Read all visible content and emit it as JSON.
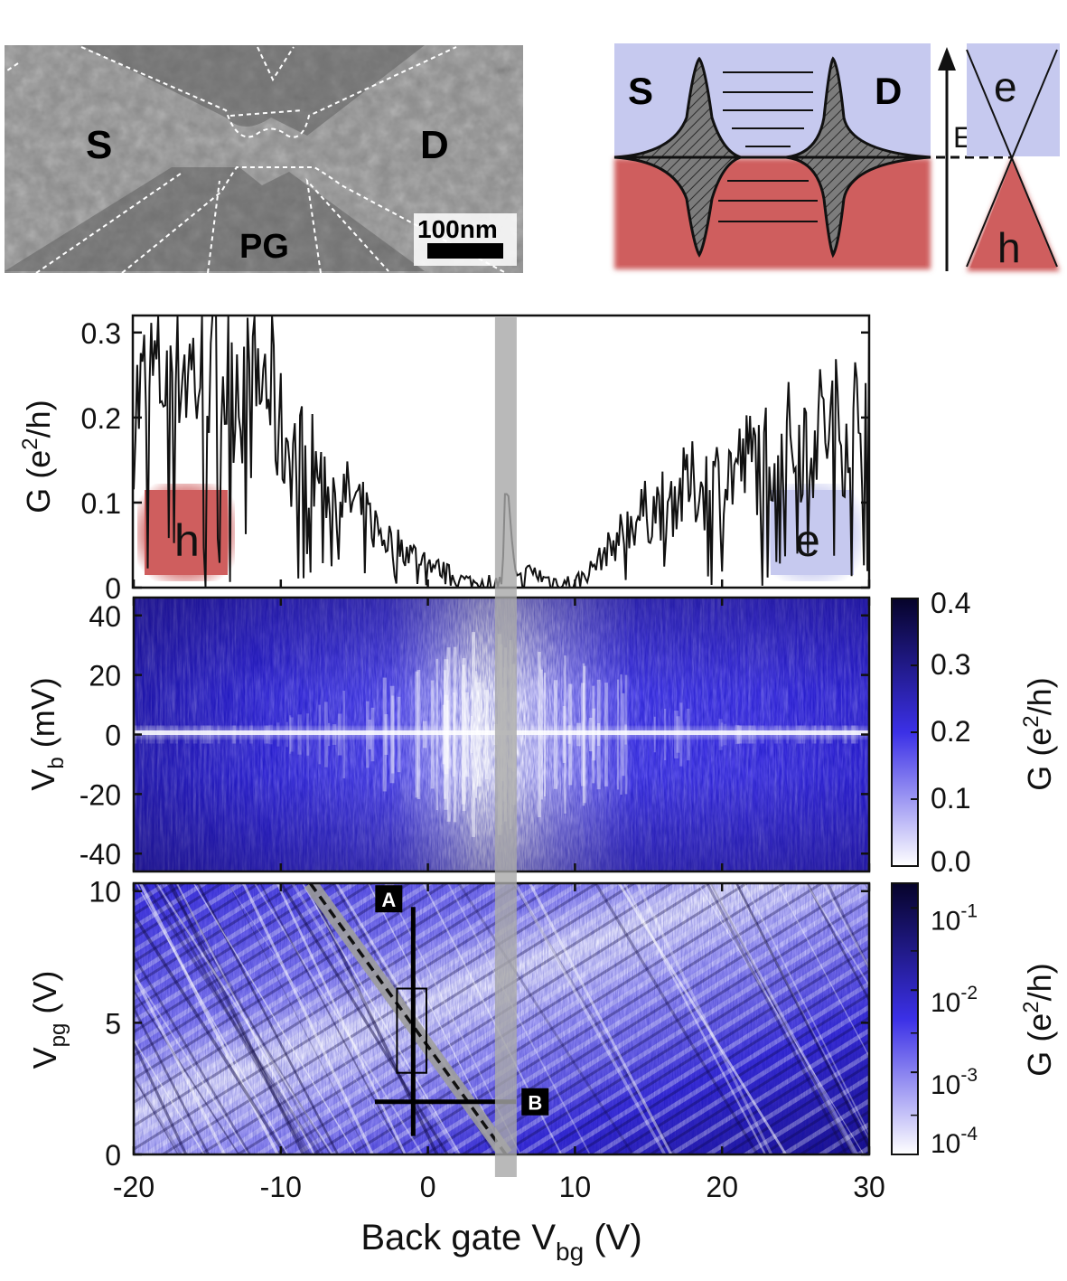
{
  "sem_panel": {
    "source_label": "S",
    "drain_label": "D",
    "gate_label": "PG",
    "scale_bar_label": "100nm"
  },
  "band_diagram": {
    "source_label": "S",
    "drain_label": "D",
    "energy_label": "E",
    "electron_label": "e",
    "hole_label": "h"
  },
  "colors": {
    "hole_red": "#cf5e5e",
    "electron_blue": "#c6c9ef",
    "map_dark": "#07042b",
    "map_mid": "#3a2ee8",
    "map_light": "#ffffff",
    "gray_band": "#a8a8a8"
  },
  "chart_data": [
    {
      "type": "line",
      "title": "",
      "xlabel": "",
      "ylabel": "G (e²/h)",
      "ylabel_main": "G (e",
      "ylabel_sup": "2",
      "ylabel_tail": "/h)",
      "xlim": [
        -20,
        30
      ],
      "ylim": [
        0,
        0.32
      ],
      "yticks": [
        "0.3",
        "0.2",
        "0.1",
        "0"
      ],
      "ytick_values": [
        0.3,
        0.2,
        0.1,
        0
      ],
      "hole_region_label": "h",
      "electron_region_label": "e",
      "highlight_vbg": 5.3,
      "x": [
        -20,
        -19,
        -18,
        -17,
        -16,
        -15,
        -14,
        -13,
        -12,
        -11,
        -10,
        -9,
        -8,
        -7,
        -6,
        -5,
        -4,
        -3,
        -2,
        -1,
        0,
        1,
        2,
        3,
        4,
        5,
        5.3,
        6,
        7,
        8,
        9,
        10,
        11,
        12,
        13,
        14,
        15,
        16,
        17,
        18,
        19,
        20,
        21,
        22,
        23,
        24,
        25,
        26,
        27,
        28,
        29,
        30
      ],
      "y": [
        0.21,
        0.24,
        0.26,
        0.28,
        0.25,
        0.27,
        0.25,
        0.26,
        0.22,
        0.25,
        0.18,
        0.16,
        0.15,
        0.12,
        0.11,
        0.1,
        0.08,
        0.06,
        0.05,
        0.04,
        0.03,
        0.02,
        0.01,
        0.005,
        0.005,
        0.005,
        0.11,
        0.005,
        0.02,
        0.01,
        0.005,
        0.005,
        0.02,
        0.04,
        0.06,
        0.08,
        0.09,
        0.1,
        0.11,
        0.12,
        0.12,
        0.13,
        0.14,
        0.15,
        0.16,
        0.17,
        0.17,
        0.18,
        0.19,
        0.19,
        0.2,
        0.21
      ]
    },
    {
      "type": "heatmap",
      "title": "",
      "xlabel": "",
      "ylabel": "V_b (mV)",
      "ylabel_main": "V",
      "ylabel_sub": "b",
      "ylabel_tail": " (mV)",
      "xlim": [
        -20,
        30
      ],
      "ylim": [
        -46,
        46
      ],
      "yticks": [
        "40",
        "20",
        "0",
        "-20",
        "-40"
      ],
      "ytick_values": [
        40,
        20,
        0,
        -20,
        -40
      ],
      "colorbar_label": "G (e²/h)",
      "colorbar_main": "G (e",
      "colorbar_sup": "2",
      "colorbar_tail": "/h)",
      "colorbar_ticks": [
        "0.4",
        "0.3",
        "0.2",
        "0.1",
        "0.0"
      ],
      "colorbar_values": [
        0.4,
        0.3,
        0.2,
        0.1,
        0.0
      ],
      "colorbar_scale": "linear",
      "gap_region_vbg": [
        0,
        10
      ],
      "bright_line_vb": 0
    },
    {
      "type": "heatmap",
      "title": "",
      "xlabel": "Back gate V_bg (V)",
      "xlabel_main": "Back gate V",
      "xlabel_sub": "bg",
      "xlabel_tail": " (V)",
      "ylabel": "V_pg (V)",
      "ylabel_main": "V",
      "ylabel_sub": "pg",
      "ylabel_tail": " (V)",
      "xlim": [
        -20,
        30
      ],
      "ylim": [
        0,
        10.3
      ],
      "xticks": [
        "-20",
        "-10",
        "0",
        "10",
        "20",
        "30"
      ],
      "xtick_values": [
        -20,
        -10,
        0,
        10,
        20,
        30
      ],
      "yticks": [
        "10",
        "5",
        "0"
      ],
      "ytick_values": [
        10,
        5,
        0
      ],
      "colorbar_label": "G (e²/h)",
      "colorbar_main": "G (e",
      "colorbar_sup": "2",
      "colorbar_tail": "/h)",
      "colorbar_tick_base": "10",
      "colorbar_tick_exponents": [
        "-1",
        "-2",
        "-3",
        "-4"
      ],
      "colorbar_scale": "log",
      "colorbar_range": [
        0.0001,
        0.2
      ],
      "cut_A_label": "A",
      "cut_B_label": "B",
      "cut_A": {
        "vbg": -1.0,
        "vpg_from": 0.7,
        "vpg_to": 9.4
      },
      "cut_B": {
        "vpg": 2.0,
        "vbg_from": -3.6,
        "vbg_to": 6.0
      },
      "zoom_box": {
        "vbg_from": -2.1,
        "vbg_to": -0.1,
        "vpg_from": 3.1,
        "vpg_to": 6.3
      },
      "dirac_line": {
        "from": [
          -8.0,
          10.3
        ],
        "to": [
          5.3,
          0.0
        ]
      }
    }
  ]
}
